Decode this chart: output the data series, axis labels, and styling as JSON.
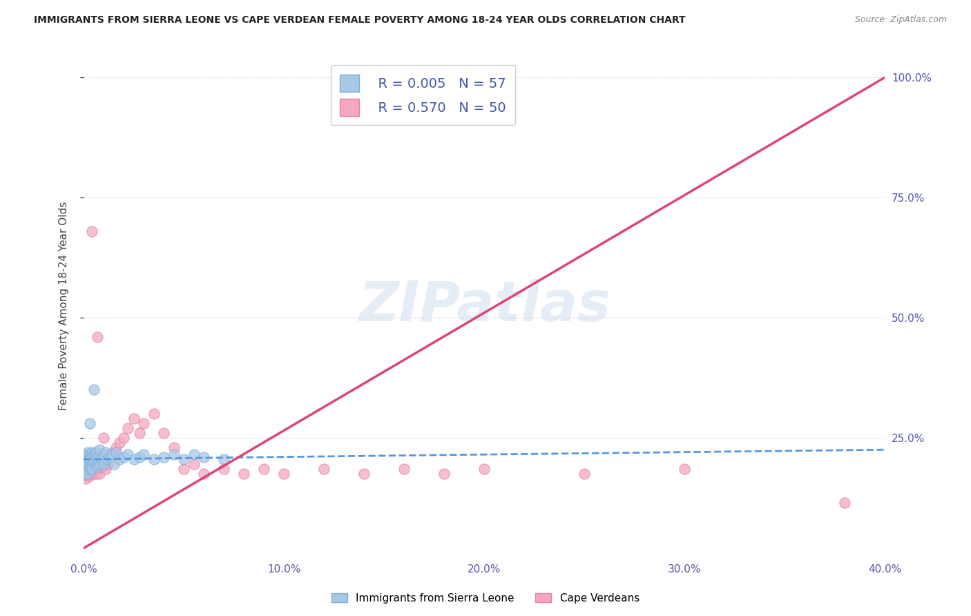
{
  "title": "IMMIGRANTS FROM SIERRA LEONE VS CAPE VERDEAN FEMALE POVERTY AMONG 18-24 YEAR OLDS CORRELATION CHART",
  "source": "Source: ZipAtlas.com",
  "ylabel": "Female Poverty Among 18-24 Year Olds",
  "xlim": [
    0.0,
    0.4
  ],
  "ylim": [
    0.0,
    1.05
  ],
  "xtick_labels": [
    "0.0%",
    "10.0%",
    "20.0%",
    "30.0%",
    "40.0%"
  ],
  "xtick_vals": [
    0.0,
    0.1,
    0.2,
    0.3,
    0.4
  ],
  "ytick_labels": [
    "25.0%",
    "50.0%",
    "75.0%",
    "100.0%"
  ],
  "ytick_vals": [
    0.25,
    0.5,
    0.75,
    1.0
  ],
  "watermark": "ZIPatlas",
  "legend_R1": "R = 0.005",
  "legend_N1": "N = 57",
  "legend_R2": "R = 0.570",
  "legend_N2": "N = 50",
  "color_sierra": "#a8c8e8",
  "color_cape": "#f4a8c0",
  "color_sierra_edge": "#7aaed4",
  "color_cape_edge": "#e8809a",
  "color_trendline_sierra": "#5599dd",
  "color_trendline_cape": "#dd4477",
  "sierra_x": [
    0.001,
    0.001,
    0.001,
    0.001,
    0.001,
    0.001,
    0.001,
    0.001,
    0.001,
    0.002,
    0.002,
    0.002,
    0.002,
    0.002,
    0.002,
    0.002,
    0.003,
    0.003,
    0.003,
    0.003,
    0.003,
    0.004,
    0.004,
    0.004,
    0.004,
    0.005,
    0.005,
    0.005,
    0.006,
    0.006,
    0.006,
    0.007,
    0.007,
    0.008,
    0.008,
    0.009,
    0.01,
    0.01,
    0.011,
    0.012,
    0.013,
    0.014,
    0.015,
    0.016,
    0.018,
    0.02,
    0.022,
    0.025,
    0.028,
    0.03,
    0.035,
    0.04,
    0.045,
    0.05,
    0.055,
    0.06,
    0.07
  ],
  "sierra_y": [
    0.195,
    0.185,
    0.21,
    0.175,
    0.2,
    0.19,
    0.215,
    0.185,
    0.205,
    0.195,
    0.21,
    0.185,
    0.2,
    0.22,
    0.175,
    0.195,
    0.215,
    0.19,
    0.205,
    0.185,
    0.28,
    0.22,
    0.195,
    0.21,
    0.185,
    0.35,
    0.215,
    0.2,
    0.22,
    0.195,
    0.21,
    0.205,
    0.19,
    0.225,
    0.195,
    0.205,
    0.215,
    0.195,
    0.22,
    0.205,
    0.21,
    0.215,
    0.195,
    0.22,
    0.205,
    0.21,
    0.215,
    0.205,
    0.21,
    0.215,
    0.205,
    0.21,
    0.215,
    0.205,
    0.215,
    0.21,
    0.205
  ],
  "cape_x": [
    0.001,
    0.001,
    0.001,
    0.001,
    0.002,
    0.002,
    0.002,
    0.003,
    0.003,
    0.003,
    0.004,
    0.004,
    0.005,
    0.005,
    0.006,
    0.006,
    0.007,
    0.007,
    0.008,
    0.009,
    0.01,
    0.011,
    0.012,
    0.013,
    0.015,
    0.016,
    0.018,
    0.02,
    0.022,
    0.025,
    0.028,
    0.03,
    0.035,
    0.04,
    0.045,
    0.05,
    0.055,
    0.06,
    0.07,
    0.08,
    0.09,
    0.1,
    0.12,
    0.14,
    0.16,
    0.18,
    0.2,
    0.25,
    0.3,
    0.38
  ],
  "cape_y": [
    0.17,
    0.175,
    0.165,
    0.18,
    0.175,
    0.185,
    0.19,
    0.17,
    0.185,
    0.195,
    0.68,
    0.175,
    0.185,
    0.195,
    0.175,
    0.185,
    0.46,
    0.19,
    0.175,
    0.19,
    0.25,
    0.185,
    0.195,
    0.215,
    0.22,
    0.23,
    0.24,
    0.25,
    0.27,
    0.29,
    0.26,
    0.28,
    0.3,
    0.26,
    0.23,
    0.185,
    0.195,
    0.175,
    0.185,
    0.175,
    0.185,
    0.175,
    0.185,
    0.175,
    0.185,
    0.175,
    0.185,
    0.175,
    0.185,
    0.115
  ],
  "trendline_sierra_slope": 0.05,
  "trendline_sierra_intercept": 0.205,
  "trendline_cape_slope": 2.45,
  "trendline_cape_intercept": 0.02,
  "background_color": "#ffffff",
  "grid_color": "#e0e0e0"
}
